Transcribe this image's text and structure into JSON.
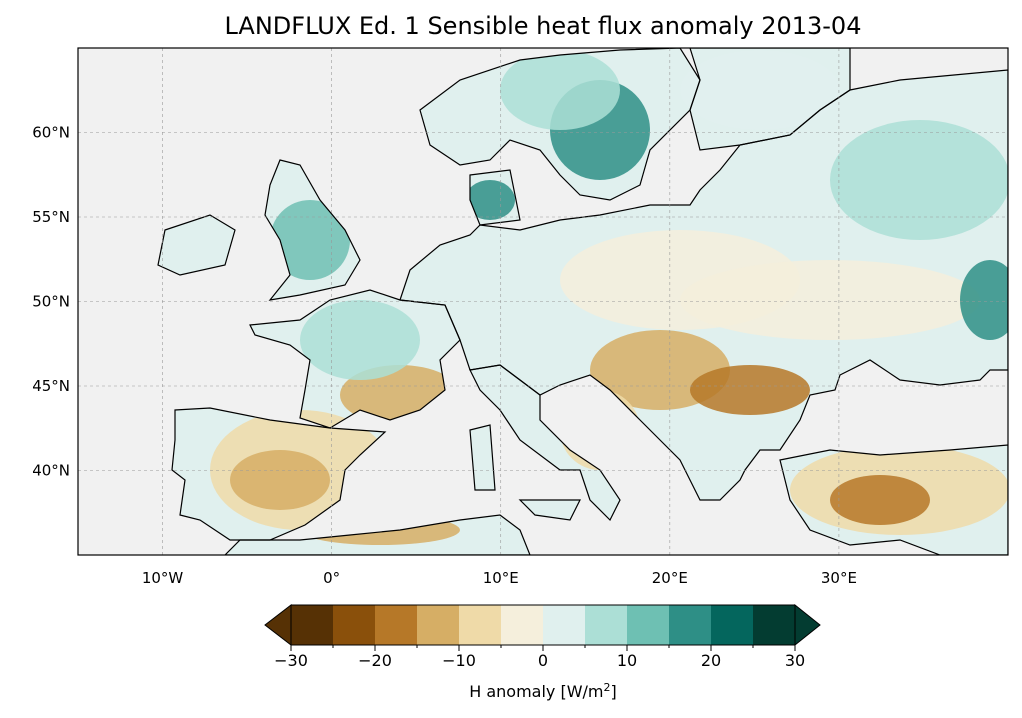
{
  "title": "LANDFLUX Ed. 1 Sensible heat flux anomaly 2013-04",
  "map": {
    "lon_range": [
      -15,
      40
    ],
    "lat_range": [
      35,
      65
    ],
    "lon_ticks": [
      {
        "v": -10,
        "label": "10°W"
      },
      {
        "v": 0,
        "label": "0°"
      },
      {
        "v": 10,
        "label": "10°E"
      },
      {
        "v": 20,
        "label": "20°E"
      },
      {
        "v": 30,
        "label": "30°E"
      }
    ],
    "lat_ticks": [
      {
        "v": 60,
        "label": "60°N"
      },
      {
        "v": 55,
        "label": "55°N"
      },
      {
        "v": 50,
        "label": "50°N"
      },
      {
        "v": 45,
        "label": "45°N"
      },
      {
        "v": 40,
        "label": "40°N"
      }
    ],
    "ocean_color": "#f1f1f1"
  },
  "colorbar": {
    "label": "H anomaly [W/m",
    "label_sup": "2",
    "label_end": "]",
    "bounds": [
      -30,
      -25,
      -20,
      -15,
      -10,
      -5,
      0,
      5,
      10,
      15,
      20,
      25,
      30
    ],
    "tick_labels": [
      {
        "v": -30,
        "label": "−30"
      },
      {
        "v": -20,
        "label": "−20"
      },
      {
        "v": -10,
        "label": "−10"
      },
      {
        "v": 0,
        "label": "0"
      },
      {
        "v": 10,
        "label": "10"
      },
      {
        "v": 20,
        "label": "20"
      },
      {
        "v": 30,
        "label": "30"
      }
    ],
    "colors": [
      "#563105",
      "#8a500b",
      "#b67828",
      "#d6ae65",
      "#efdaa8",
      "#f5efdc",
      "#e0f0ee",
      "#acdfd6",
      "#6ec0b3",
      "#2e8f86",
      "#04665d",
      "#033c31"
    ],
    "extend": "both"
  }
}
